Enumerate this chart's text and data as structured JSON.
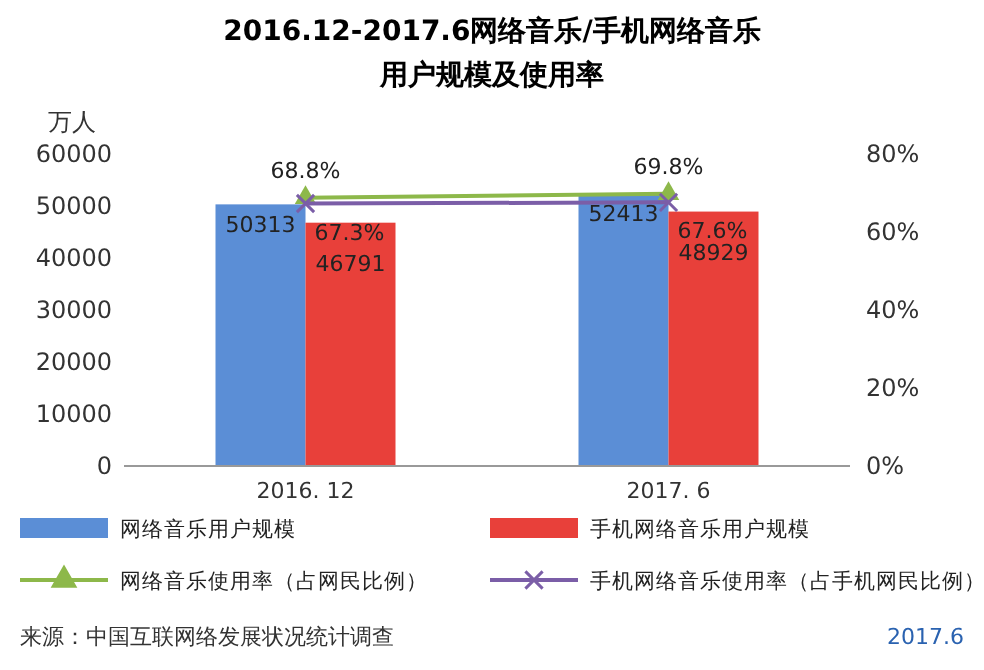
{
  "chart_data": {
    "type": "bar",
    "title": "2016.12-2017.6网络音乐/手机网络音乐用户规模及使用率",
    "ylabel": "万人",
    "categories": [
      "2016. 12",
      "2017. 6"
    ],
    "series": [
      {
        "name": "网络音乐用户规模",
        "color": "#5b8ed6",
        "values": [
          50313,
          52413
        ],
        "value_labels": [
          "50313",
          "52413"
        ]
      },
      {
        "name": "手机网络音乐用户规模",
        "color": "#e8403a",
        "values": [
          46791,
          48929
        ],
        "value_labels": [
          "46791",
          "48929"
        ]
      },
      {
        "name": "网络音乐使用率（占网民比例）",
        "type": "line",
        "axis": "y2",
        "color": "#8db84a",
        "marker": "triangle",
        "values": [
          68.8,
          69.8
        ],
        "value_labels": [
          "68.8%",
          "69.8%"
        ]
      },
      {
        "name": "手机网络音乐使用率（占手机网民比例）",
        "type": "line",
        "axis": "y2",
        "color": "#7b5ea7",
        "marker": "cross",
        "values": [
          67.3,
          67.6
        ],
        "value_labels": [
          "67.3%",
          "67.6%"
        ]
      }
    ],
    "ylim": [
      0,
      60000
    ],
    "yticks": [
      0,
      10000,
      20000,
      30000,
      40000,
      50000,
      60000
    ],
    "y2lim": [
      0,
      80
    ],
    "y2ticks": [
      {
        "value": 0,
        "label": "0%"
      },
      {
        "value": 20,
        "label": "20%"
      },
      {
        "value": 40,
        "label": "40%"
      },
      {
        "value": 60,
        "label": "60%"
      },
      {
        "value": 80,
        "label": "80%"
      }
    ],
    "legend": "bottom",
    "grid": false,
    "annotations": [
      "来源：中国互联网络发展状况统计调查",
      "2017.6"
    ]
  }
}
